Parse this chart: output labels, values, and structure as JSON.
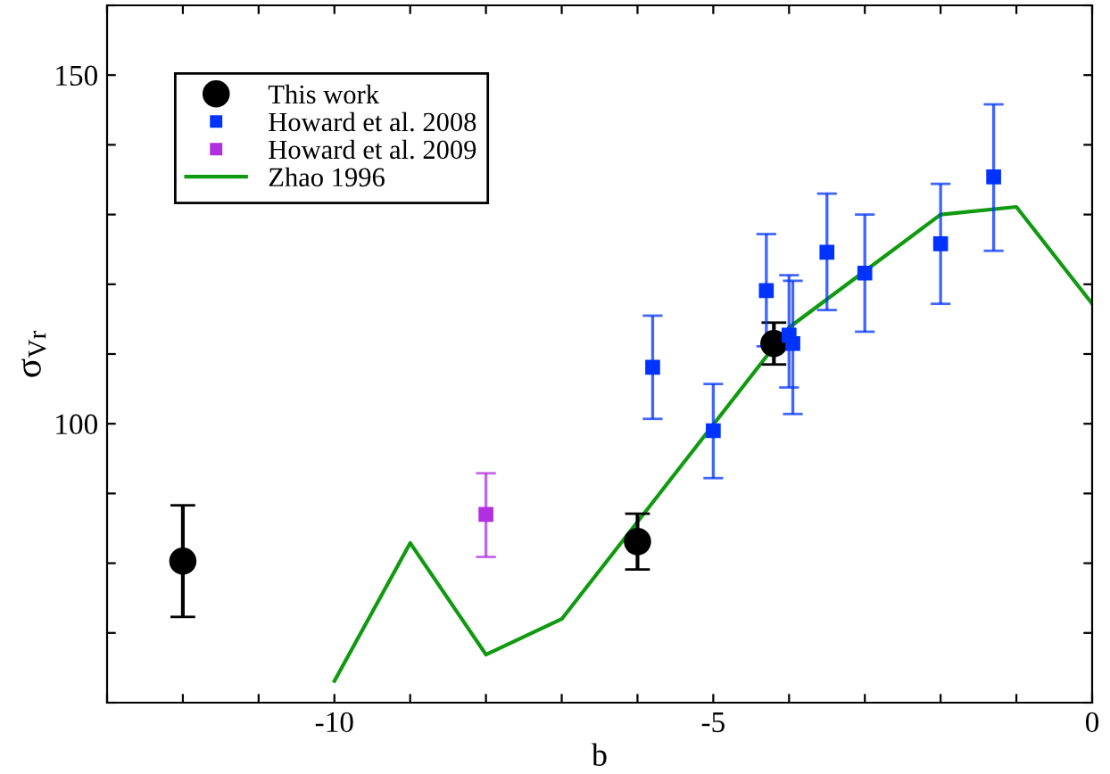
{
  "chart_data": {
    "type": "scatter",
    "xlabel": "b",
    "ylabel": "σ$_{Vr}$",
    "xlim": [
      -13,
      0
    ],
    "ylim": [
      60,
      160
    ],
    "xticks": [
      {
        "value": -13,
        "label": null
      },
      {
        "value": -12,
        "label": null
      },
      {
        "value": -11,
        "label": null
      },
      -10,
      {
        "value": -9,
        "label": null
      },
      {
        "value": -8,
        "label": null
      },
      {
        "value": -7,
        "label": null
      },
      {
        "value": -6,
        "label": null
      },
      -5,
      {
        "value": -4,
        "label": null
      },
      {
        "value": -3,
        "label": null
      },
      {
        "value": -2,
        "label": null
      },
      {
        "value": -1,
        "label": null
      },
      0
    ],
    "yticks": [
      {
        "value": 60,
        "label": null
      },
      {
        "value": 70,
        "label": null
      },
      {
        "value": 80,
        "label": null
      },
      {
        "value": 90,
        "label": null
      },
      100,
      {
        "value": 110,
        "label": null
      },
      {
        "value": 120,
        "label": null
      },
      {
        "value": 130,
        "label": null
      },
      {
        "value": 140,
        "label": null
      },
      150,
      {
        "value": 160,
        "label": null
      }
    ],
    "grid": false,
    "legend": "top left",
    "series": [
      {
        "name": "This work",
        "marker": "circle",
        "color": "#000000",
        "x": [
          -12,
          -6,
          -4.2
        ],
        "values": [
          80.3,
          83.1,
          111.5
        ],
        "errors": [
          8,
          4,
          3
        ]
      },
      {
        "name": "Howard et al. 2008",
        "marker": "square",
        "color": "#0033ff",
        "x": [
          -5.8,
          -5,
          -4.3,
          -4,
          -3.95,
          -3.5,
          -3,
          -2,
          -1.3
        ],
        "values": [
          108.1,
          99.0,
          119.1,
          112.7,
          111.5,
          124.6,
          121.6,
          125.8,
          135.4
        ],
        "errors": [
          [
            100.7,
            115.5
          ],
          [
            92.2,
            105.7
          ],
          [
            111.1,
            127.2
          ],
          [
            105.2,
            121.3
          ],
          [
            101.4,
            120.5
          ],
          [
            116.3,
            133.0
          ],
          [
            113.2,
            130.0
          ],
          [
            117.2,
            134.4
          ],
          [
            124.8,
            145.8
          ]
        ]
      },
      {
        "name": "Howard et al. 2009",
        "marker": "square",
        "color": "#b030e0",
        "x": [
          -8
        ],
        "values": [
          87.0
        ],
        "errors": [
          [
            80.9,
            92.9
          ]
        ]
      },
      {
        "name": "Zhao 1996",
        "type": "line",
        "marker": "none",
        "line_style": "solid",
        "color": "#109a10",
        "x": [
          -10,
          -9,
          -8,
          -7,
          -4,
          -2,
          -1,
          0
        ],
        "values": [
          63.1,
          82.9,
          66.9,
          72.0,
          113.8,
          130.0,
          131.1,
          117.2
        ]
      }
    ]
  }
}
